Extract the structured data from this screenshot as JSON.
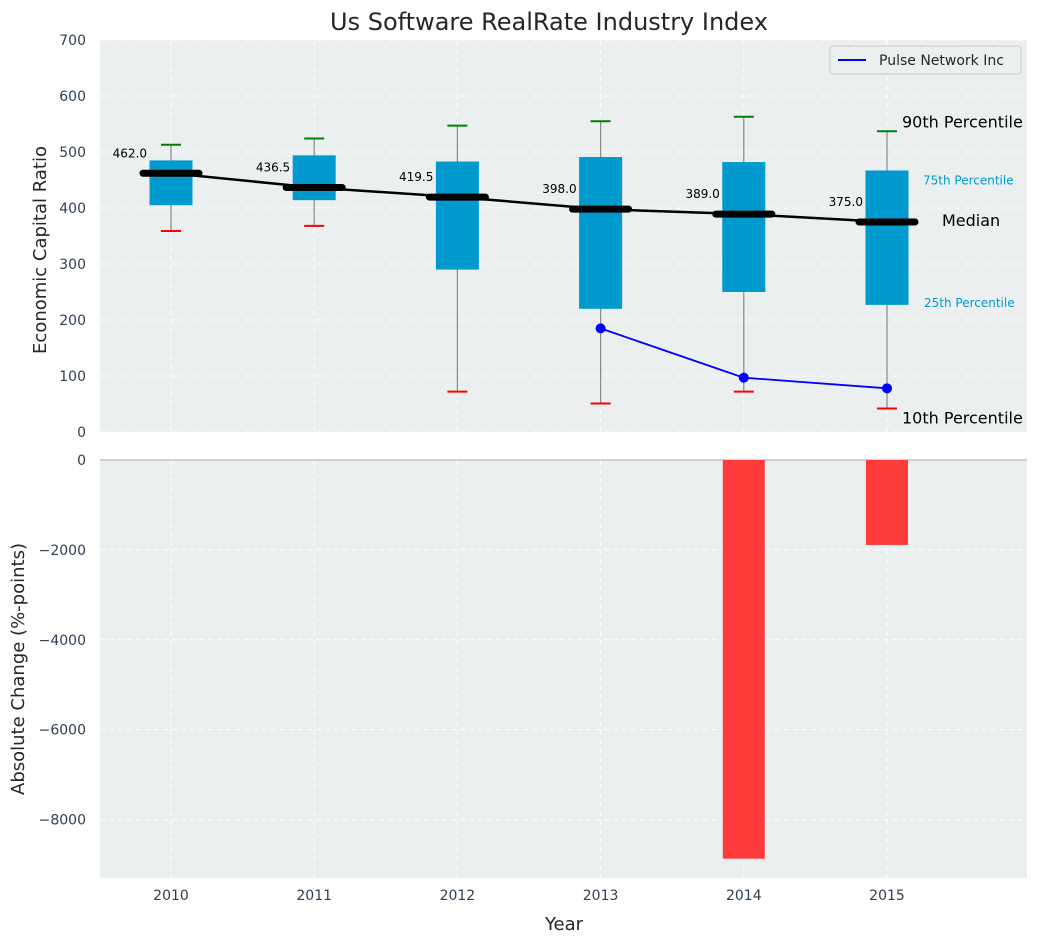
{
  "chart_data": [
    {
      "type": "box",
      "title": "Us Software RealRate Industry Index",
      "ylabel": "Economic Capital Ratio",
      "ylim": [
        0,
        700
      ],
      "yticks": [
        0,
        100,
        200,
        300,
        400,
        500,
        600,
        700
      ],
      "grid": true,
      "legend": {
        "position": "top-right",
        "entries": [
          "Pulse Network Inc"
        ]
      },
      "categories": [
        "2010",
        "2011",
        "2012",
        "2013",
        "2014",
        "2015"
      ],
      "boxes": [
        {
          "year": "2010",
          "p10": 359,
          "p25": 405,
          "median": 462.0,
          "p75": 485,
          "p90": 513
        },
        {
          "year": "2011",
          "p10": 368,
          "p25": 414,
          "median": 436.5,
          "p75": 494,
          "p90": 524
        },
        {
          "year": "2012",
          "p10": 72,
          "p25": 290,
          "median": 419.5,
          "p75": 483,
          "p90": 547
        },
        {
          "year": "2013",
          "p10": 51,
          "p25": 220,
          "median": 398.0,
          "p75": 491,
          "p90": 555
        },
        {
          "year": "2014",
          "p10": 72,
          "p25": 250,
          "median": 389.0,
          "p75": 482,
          "p90": 563
        },
        {
          "year": "2015",
          "p10": 42,
          "p25": 227,
          "median": 375.0,
          "p75": 467,
          "p90": 537
        }
      ],
      "median_labels": [
        "462.0",
        "436.5",
        "419.5",
        "398.0",
        "389.0",
        "375.0"
      ],
      "series": [
        {
          "name": "Pulse Network Inc",
          "x": [
            "2013",
            "2014",
            "2015"
          ],
          "values": [
            185,
            97,
            78
          ],
          "color": "#0000ff"
        }
      ],
      "annotations": {
        "p90": "90th Percentile",
        "p75": "75th Percentile",
        "median": "Median",
        "p25": "25th Percentile",
        "p10": "10th Percentile"
      },
      "colors": {
        "box": "#009ace",
        "median": "#000000",
        "p90_cap": "#008000",
        "p10_cap": "#ff0000",
        "background": "#ebeff0"
      }
    },
    {
      "type": "bar",
      "ylabel": "Absolute Change (%-points)",
      "xlabel": "Year",
      "ylim": [
        -9300,
        0
      ],
      "yticks": [
        0,
        -2000,
        -4000,
        -6000,
        -8000
      ],
      "ytick_labels": [
        "0",
        "−2000",
        "−4000",
        "−6000",
        "−8000"
      ],
      "categories": [
        "2010",
        "2011",
        "2012",
        "2013",
        "2014",
        "2015"
      ],
      "bars": [
        {
          "year": "2014",
          "value": -8870
        },
        {
          "year": "2015",
          "value": -1890
        }
      ],
      "colors": {
        "bar": "#ff3c3c"
      }
    }
  ]
}
